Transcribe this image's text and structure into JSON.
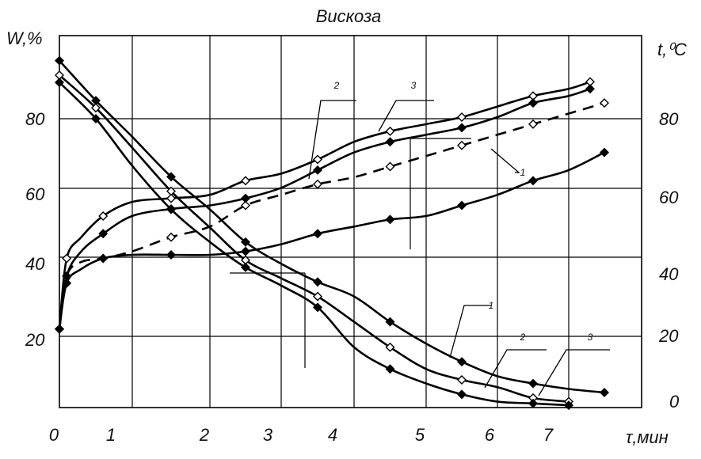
{
  "chart_data": {
    "type": "line",
    "title": "Вискоза",
    "xlabel": "τ,мин",
    "ylabel_left": "W,%",
    "ylabel_right": "t,⁰C",
    "x_ticks": [
      "0",
      "1",
      "2",
      "3",
      "4",
      "5",
      "6",
      "7"
    ],
    "y_left_ticks": [
      "20",
      "40",
      "60",
      "80"
    ],
    "y_right_ticks": [
      "0",
      "20",
      "40",
      "60",
      "80"
    ],
    "grid": true,
    "annotations": [
      "1",
      "2",
      "3",
      "1",
      "2",
      "3"
    ],
    "series": [
      {
        "axis": "left",
        "style": "solid",
        "values": [
          [
            0,
            96
          ],
          [
            0.5,
            85
          ],
          [
            1,
            75
          ],
          [
            1.5,
            64
          ],
          [
            2,
            55
          ],
          [
            2.5,
            46
          ],
          [
            3,
            40
          ],
          [
            3.5,
            35
          ],
          [
            4,
            31
          ],
          [
            4.5,
            24
          ],
          [
            5,
            18
          ],
          [
            5.5,
            13
          ],
          [
            6,
            9
          ],
          [
            6.5,
            7
          ],
          [
            7,
            5.5
          ],
          [
            7.5,
            4.5
          ]
        ]
      },
      {
        "axis": "left",
        "style": "solid",
        "values": [
          [
            0,
            92
          ],
          [
            0.5,
            83
          ],
          [
            1,
            72
          ],
          [
            1.5,
            60
          ],
          [
            2,
            50
          ],
          [
            2.5,
            41
          ],
          [
            3,
            36
          ],
          [
            3.5,
            31
          ],
          [
            4,
            24
          ],
          [
            4.5,
            17
          ],
          [
            5,
            11
          ],
          [
            5.5,
            8
          ],
          [
            6,
            6
          ],
          [
            6.5,
            3
          ],
          [
            7,
            2
          ]
        ]
      },
      {
        "axis": "left",
        "style": "solid",
        "values": [
          [
            0,
            90
          ],
          [
            0.5,
            80
          ],
          [
            1,
            67
          ],
          [
            1.5,
            55
          ],
          [
            2,
            46
          ],
          [
            2.5,
            39
          ],
          [
            3,
            34
          ],
          [
            3.5,
            28
          ],
          [
            4,
            17
          ],
          [
            4.5,
            11
          ],
          [
            5,
            7
          ],
          [
            5.5,
            4
          ],
          [
            6,
            2
          ],
          [
            6.5,
            1.5
          ],
          [
            7,
            1
          ]
        ]
      },
      {
        "axis": "right",
        "style": "dashed",
        "values": [
          [
            0,
            20
          ],
          [
            0.1,
            35
          ],
          [
            0.3,
            39
          ],
          [
            0.6,
            40
          ],
          [
            1,
            42
          ],
          [
            1.5,
            46
          ],
          [
            2,
            49
          ],
          [
            2.5,
            55
          ],
          [
            3,
            58
          ],
          [
            3.5,
            61
          ],
          [
            4,
            63
          ],
          [
            4.5,
            66
          ],
          [
            5,
            69
          ],
          [
            5.5,
            72
          ],
          [
            6,
            75
          ],
          [
            6.5,
            78
          ],
          [
            7,
            81
          ],
          [
            7.5,
            84
          ]
        ]
      },
      {
        "axis": "right",
        "style": "solid",
        "values": [
          [
            0,
            20
          ],
          [
            0.1,
            33
          ],
          [
            0.3,
            37
          ],
          [
            0.6,
            40
          ],
          [
            1,
            41
          ],
          [
            1.5,
            41
          ],
          [
            2,
            41
          ],
          [
            2.5,
            42
          ],
          [
            3,
            44
          ],
          [
            3.5,
            47
          ],
          [
            4,
            49
          ],
          [
            4.5,
            51
          ],
          [
            5,
            52
          ],
          [
            5.5,
            55
          ],
          [
            6,
            58
          ],
          [
            6.5,
            62
          ],
          [
            7,
            65
          ],
          [
            7.5,
            70
          ]
        ]
      },
      {
        "axis": "right",
        "style": "solid",
        "values": [
          [
            0,
            20
          ],
          [
            0.1,
            40
          ],
          [
            0.3,
            46
          ],
          [
            0.6,
            52
          ],
          [
            1,
            56
          ],
          [
            1.5,
            57
          ],
          [
            2,
            58
          ],
          [
            2.5,
            62
          ],
          [
            3,
            64
          ],
          [
            3.5,
            68
          ],
          [
            4,
            73
          ],
          [
            4.5,
            76
          ],
          [
            5,
            78
          ],
          [
            5.5,
            80
          ],
          [
            6,
            83
          ],
          [
            6.5,
            86
          ],
          [
            7,
            88
          ],
          [
            7.3,
            90
          ]
        ]
      },
      {
        "axis": "right",
        "style": "solid",
        "values": [
          [
            0,
            20
          ],
          [
            0.1,
            35
          ],
          [
            0.3,
            42
          ],
          [
            0.6,
            47
          ],
          [
            1,
            52
          ],
          [
            1.5,
            54
          ],
          [
            2,
            55
          ],
          [
            2.5,
            57
          ],
          [
            3,
            60
          ],
          [
            3.5,
            65
          ],
          [
            4,
            70
          ],
          [
            4.5,
            73
          ],
          [
            5,
            75
          ],
          [
            5.5,
            77
          ],
          [
            6,
            80
          ],
          [
            6.5,
            84
          ],
          [
            7,
            86
          ],
          [
            7.3,
            88
          ]
        ]
      }
    ]
  }
}
